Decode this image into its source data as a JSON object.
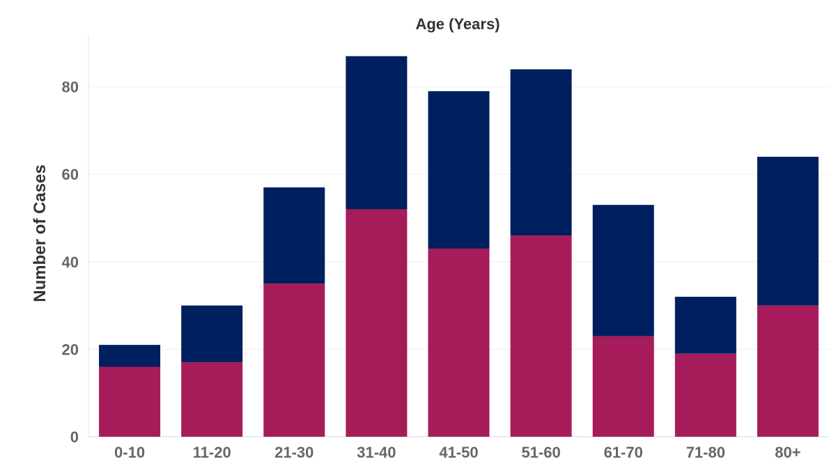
{
  "chart_data": {
    "type": "bar",
    "stacked": true,
    "title": "",
    "xlabel": "Age (Years)",
    "ylabel": "Number of Cases",
    "categories": [
      "0-10",
      "11-20",
      "21-30",
      "31-40",
      "41-50",
      "51-60",
      "61-70",
      "71-80",
      "80+"
    ],
    "y_ticks": [
      0,
      20,
      40,
      60,
      80
    ],
    "ylim": [
      0,
      92
    ],
    "grid": true,
    "legend": "none",
    "series": [
      {
        "values": [
          16,
          17,
          35,
          52,
          43,
          46,
          23,
          19,
          30
        ],
        "color": "#a61c5a"
      },
      {
        "values": [
          5,
          13,
          22,
          35,
          36,
          38,
          30,
          13,
          34
        ],
        "color": "#001f5f"
      }
    ]
  }
}
